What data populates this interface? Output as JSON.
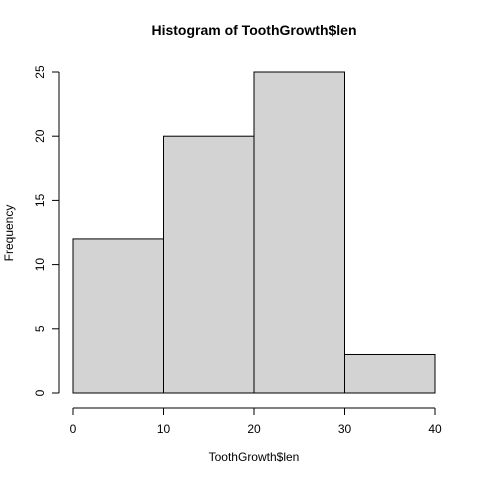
{
  "chart_data": {
    "type": "bar",
    "title": "Histogram of ToothGrowth$len",
    "xlabel": "ToothGrowth$len",
    "ylabel": "Frequency",
    "bins": [
      {
        "x0": 0,
        "x1": 10,
        "count": 12
      },
      {
        "x0": 10,
        "x1": 20,
        "count": 20
      },
      {
        "x0": 20,
        "x1": 30,
        "count": 25
      },
      {
        "x0": 30,
        "x1": 40,
        "count": 3
      }
    ],
    "xlim": [
      0,
      40
    ],
    "ylim": [
      0,
      25
    ],
    "xticks": [
      0,
      10,
      20,
      30,
      40
    ],
    "yticks": [
      0,
      5,
      10,
      15,
      20,
      25
    ],
    "grid": false,
    "bar_color": "#d3d3d3",
    "border_color": "#000000"
  }
}
